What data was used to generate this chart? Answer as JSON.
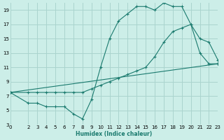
{
  "xlabel": "Humidex (Indice chaleur)",
  "bg_color": "#cceee8",
  "line_color": "#1a7a6e",
  "grid_color": "#aad4ce",
  "xlim": [
    0,
    23
  ],
  "ylim": [
    3,
    20
  ],
  "xticks": [
    0,
    2,
    3,
    4,
    5,
    6,
    7,
    8,
    9,
    10,
    11,
    12,
    13,
    14,
    15,
    16,
    17,
    18,
    19,
    20,
    21,
    22,
    23
  ],
  "yticks": [
    3,
    5,
    7,
    9,
    11,
    13,
    15,
    17,
    19
  ],
  "line1_x": [
    0,
    2,
    3,
    4,
    5,
    6,
    7,
    8,
    9,
    10,
    11,
    12,
    13,
    14,
    15,
    16,
    17,
    18,
    19,
    20,
    21,
    22,
    23
  ],
  "line1_y": [
    7.5,
    6.0,
    6.0,
    5.5,
    5.5,
    5.5,
    4.5,
    3.8,
    6.5,
    11.0,
    15.0,
    17.5,
    18.5,
    19.5,
    19.5,
    19.0,
    20.0,
    19.5,
    19.5,
    17.0,
    13.0,
    11.5,
    11.5
  ],
  "line2_x": [
    0,
    2,
    3,
    4,
    5,
    6,
    7,
    8,
    9,
    10,
    11,
    12,
    13,
    14,
    15,
    16,
    17,
    18,
    19,
    20,
    21,
    22,
    23
  ],
  "line2_y": [
    7.5,
    7.5,
    7.5,
    7.5,
    7.5,
    7.5,
    7.5,
    7.5,
    8.0,
    8.5,
    9.0,
    9.5,
    10.0,
    10.5,
    11.0,
    12.5,
    14.5,
    16.0,
    16.5,
    17.0,
    15.0,
    14.5,
    12.0
  ],
  "line3_x": [
    0,
    23
  ],
  "line3_y": [
    7.5,
    11.5
  ]
}
